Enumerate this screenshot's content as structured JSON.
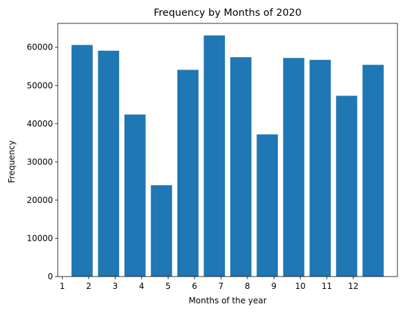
{
  "chart_data": {
    "type": "bar",
    "title": "Frequency by Months of 2020",
    "xlabel": "Months of the year",
    "ylabel": "Frequency",
    "x": [
      1.75,
      2.75,
      3.75,
      4.75,
      5.75,
      6.75,
      7.75,
      8.75,
      9.75,
      10.75,
      11.75,
      12.75
    ],
    "values": [
      60600,
      59100,
      42400,
      23900,
      54100,
      63100,
      57400,
      37200,
      57200,
      56700,
      47300,
      55400
    ],
    "bar_width": 0.8,
    "xlim": [
      0.83,
      13.67
    ],
    "ylim": [
      0,
      66250
    ],
    "xticks": [
      1,
      2,
      3,
      4,
      5,
      6,
      7,
      8,
      9,
      10,
      11,
      12
    ],
    "xtick_labels": [
      "1",
      "2",
      "3",
      "4",
      "5",
      "6",
      "7",
      "8",
      "9",
      "10",
      "11",
      "12"
    ],
    "yticks": [
      0,
      10000,
      20000,
      30000,
      40000,
      50000,
      60000
    ],
    "ytick_labels": [
      "0",
      "10000",
      "20000",
      "30000",
      "40000",
      "50000",
      "60000"
    ],
    "bar_color": "#1f77b4",
    "grid": false,
    "legend": "none"
  }
}
